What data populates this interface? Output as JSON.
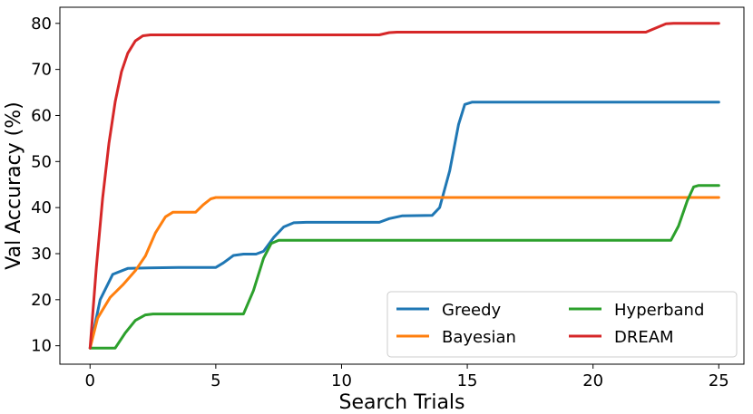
{
  "chart_data": {
    "type": "line",
    "title": "",
    "xlabel": "Search Trials",
    "ylabel": "Val Accuracy (%)",
    "xlim": [
      -1.2,
      26.0
    ],
    "ylim": [
      6.0,
      83.5
    ],
    "xticks": [
      0,
      5,
      10,
      15,
      20,
      25
    ],
    "yticks": [
      10,
      20,
      30,
      40,
      50,
      60,
      70,
      80
    ],
    "grid": false,
    "legend": {
      "placement": "lower-right",
      "columns": 2
    },
    "series": [
      {
        "name": "Greedy",
        "color": "#1f77b4",
        "points": [
          [
            0,
            9.5
          ],
          [
            0.4,
            20
          ],
          [
            0.9,
            25.5
          ],
          [
            1.5,
            26.8
          ],
          [
            2.3,
            26.9
          ],
          [
            3.5,
            27.0
          ],
          [
            5.0,
            27.0
          ],
          [
            5.3,
            28.0
          ],
          [
            5.7,
            29.6
          ],
          [
            6.1,
            29.9
          ],
          [
            6.6,
            29.9
          ],
          [
            6.9,
            30.5
          ],
          [
            7.3,
            33.5
          ],
          [
            7.7,
            35.8
          ],
          [
            8.1,
            36.7
          ],
          [
            8.6,
            36.8
          ],
          [
            11.5,
            36.8
          ],
          [
            11.9,
            37.6
          ],
          [
            12.4,
            38.2
          ],
          [
            13.6,
            38.3
          ],
          [
            13.9,
            40
          ],
          [
            14.3,
            48
          ],
          [
            14.65,
            58
          ],
          [
            14.9,
            62.4
          ],
          [
            15.2,
            62.9
          ],
          [
            25,
            62.9
          ]
        ]
      },
      {
        "name": "Bayesian",
        "color": "#ff7f0e",
        "points": [
          [
            0,
            9.5
          ],
          [
            0.3,
            16
          ],
          [
            0.8,
            20.5
          ],
          [
            1.3,
            23.2
          ],
          [
            1.8,
            26.3
          ],
          [
            2.2,
            29.5
          ],
          [
            2.6,
            34.5
          ],
          [
            3.0,
            38.0
          ],
          [
            3.3,
            39.0
          ],
          [
            4.2,
            39.0
          ],
          [
            4.5,
            40.6
          ],
          [
            4.8,
            41.9
          ],
          [
            5.0,
            42.2
          ],
          [
            25,
            42.2
          ]
        ]
      },
      {
        "name": "Hyperband",
        "color": "#2ca02c",
        "points": [
          [
            0,
            9.5
          ],
          [
            1.0,
            9.5
          ],
          [
            1.4,
            12.8
          ],
          [
            1.8,
            15.5
          ],
          [
            2.2,
            16.7
          ],
          [
            2.5,
            16.9
          ],
          [
            6.1,
            16.9
          ],
          [
            6.5,
            22
          ],
          [
            6.9,
            29
          ],
          [
            7.2,
            32.2
          ],
          [
            7.5,
            32.9
          ],
          [
            23.1,
            32.9
          ],
          [
            23.4,
            36
          ],
          [
            23.75,
            41.5
          ],
          [
            24.0,
            44.5
          ],
          [
            24.2,
            44.8
          ],
          [
            25,
            44.8
          ]
        ]
      },
      {
        "name": "DREAM",
        "color": "#d62728",
        "points": [
          [
            0,
            9.5
          ],
          [
            0.25,
            27
          ],
          [
            0.5,
            42
          ],
          [
            0.75,
            54
          ],
          [
            1.0,
            63
          ],
          [
            1.25,
            69.5
          ],
          [
            1.5,
            73.5
          ],
          [
            1.8,
            76.2
          ],
          [
            2.1,
            77.3
          ],
          [
            2.4,
            77.5
          ],
          [
            11.5,
            77.5
          ],
          [
            11.9,
            78.0
          ],
          [
            12.2,
            78.1
          ],
          [
            22.1,
            78.1
          ],
          [
            22.5,
            79.0
          ],
          [
            22.9,
            79.9
          ],
          [
            23.2,
            80.0
          ],
          [
            25,
            80.0
          ]
        ]
      }
    ]
  }
}
